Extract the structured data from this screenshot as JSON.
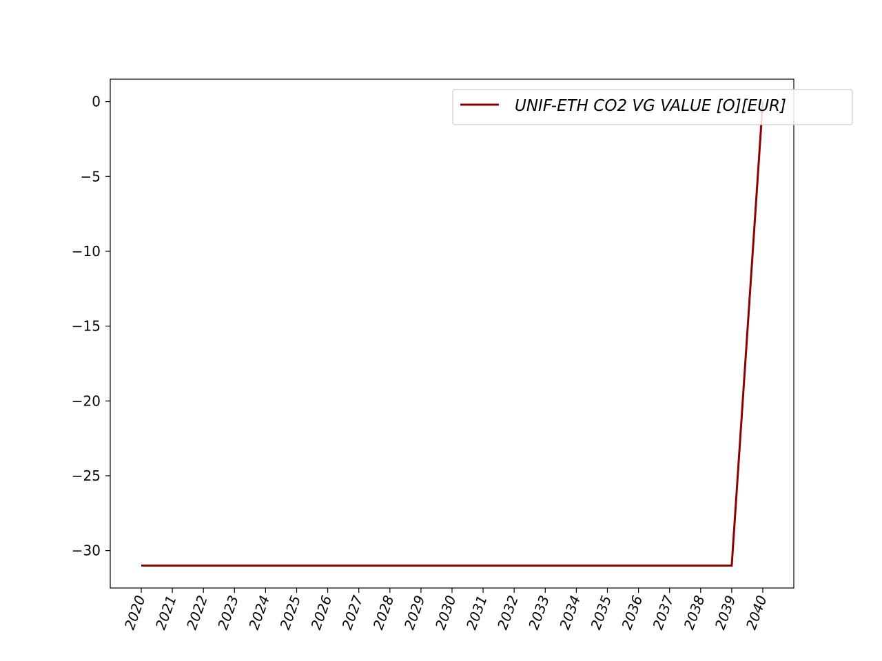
{
  "chart_data": {
    "type": "line",
    "title": "",
    "xlabel": "",
    "ylabel": "",
    "x": [
      "2020",
      "2021",
      "2022",
      "2023",
      "2024",
      "2025",
      "2026",
      "2027",
      "2028",
      "2029",
      "2030",
      "2031",
      "2032",
      "2033",
      "2034",
      "2035",
      "2036",
      "2037",
      "2038",
      "2039",
      "2040"
    ],
    "series": [
      {
        "name": "UNIF-ETH CO2 VG VALUE [O][EUR]",
        "color": "#8b0000",
        "values": [
          -31,
          -31,
          -31,
          -31,
          -31,
          -31,
          -31,
          -31,
          -31,
          -31,
          -31,
          -31,
          -31,
          -31,
          -31,
          -31,
          -31,
          -31,
          -31,
          -31,
          0
        ]
      }
    ],
    "yticks": [
      0,
      -5,
      -10,
      -15,
      -20,
      -25,
      -30
    ],
    "ytick_labels": [
      "0",
      "−5",
      "−10",
      "−15",
      "−20",
      "−25",
      "−30"
    ],
    "ylim": [
      -32.5,
      1.5
    ],
    "grid": false,
    "legend_position": "top-right"
  }
}
